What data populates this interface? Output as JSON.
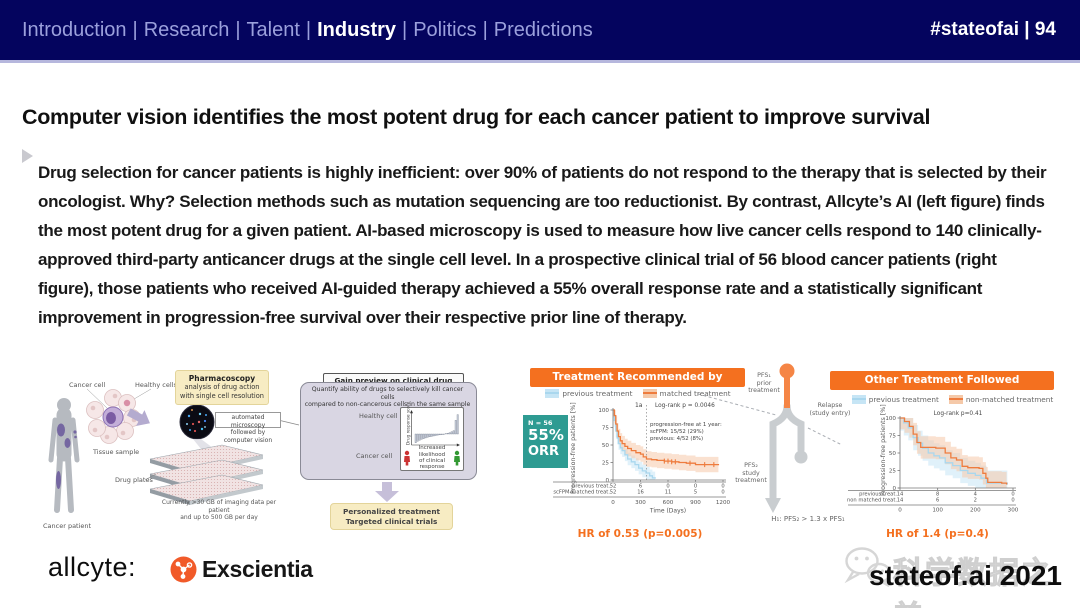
{
  "colors": {
    "navy": "#04045e",
    "nav_inactive": "#9ba0dc",
    "accent_orange": "#f4701f",
    "km_blue": "#a9d7ee",
    "km_blue_band": "#c6e5f5",
    "km_orange": "#ee7c3e",
    "km_orange_band": "#f5c9a9",
    "teal": "#2e9b92",
    "yellow_box": "#f7ecc3",
    "lavender_panel": "#d9d6e3"
  },
  "nav": {
    "items": [
      "Introduction",
      "Research",
      "Talent",
      "Industry",
      "Politics",
      "Predictions"
    ],
    "active": "Industry",
    "right": "#stateofai | 94"
  },
  "slide": {
    "title": "Computer vision identifies the most potent drug for each cancer patient to improve survival",
    "body": "Drug selection for cancer patients is highly inefficient: over 90% of patients do not respond to the therapy that is selected by their oncologist. Why? Selection methods such as mutation sequencing are too reductionist. By contrast, Allcyte’s AI (left figure) finds the most potent drug for a given patient. AI-based microscopy is used to measure how live cancer cells respond to 140 clinically-approved third-party anticancer drugs at the single cell level. In a prospective clinical trial of 56 blood cancer patients (right figure), those patients who received AI-guided therapy achieved a 55% overall response rate and a statistically significant improvement in progression-free survival over their respective prior line of therapy."
  },
  "workflow": {
    "cancer_cell": "Cancer cell",
    "healthy_cells": "Healthy cells",
    "tissue_sample": "Tissue sample",
    "cancer_patient": "Cancer patient",
    "pharmacoscopy_title": "Pharmacoscopy",
    "pharmacoscopy_sub1": "analysis of drug action",
    "pharmacoscopy_sub2": "with single cell resolution",
    "microscopy_note": "automated microscopy\nfollowed by computer vision",
    "drug_plates": "Drug plates",
    "data_note": "Currently >30 GB of imaging data per patient\nand up to 500 GB per day",
    "gain_preview": "Gain preview on clinical drug efficacy",
    "quantify": "Quantify ability of drugs to selectively kill cancer cells\ncompared to non-cancerous cells in the same sample",
    "healthy_cell": "Healthy cell",
    "cancer_cell2": "Cancer cell",
    "outcome1": "Personalized treatment",
    "outcome2": "Targeted clinical trials"
  },
  "trial": {
    "left_header": "Treatment Recommended by Platform",
    "right_header": "Other Treatment Followed",
    "n_label": "N = 56",
    "orr_pct": "55%",
    "orr_label": "ORR",
    "flow": {
      "pfs1": "PFS₁\nprior\ntreatment",
      "relapse": "Relapse\n(study entry)",
      "pfs2": "PFS₂\nstudy\ntreatment",
      "hypothesis": "H₁: PFS₂ > 1.3 x PFS₁"
    }
  },
  "chart_data": [
    {
      "id": "km_recommended",
      "type": "line",
      "title": "Treatment Recommended by Platform",
      "xlabel": "Time (Days)",
      "ylabel": "Progression-free patients [%]",
      "xlim": [
        0,
        1200
      ],
      "ylim": [
        0,
        100
      ],
      "xticks": [
        0,
        300,
        600,
        900,
        1200
      ],
      "yticks": [
        0,
        25,
        50,
        75,
        100
      ],
      "marker_x": 365,
      "marker_label": "1a",
      "logrank": "Log-rank p = 0.0046",
      "note_lines": [
        "progression-free at 1 year:",
        "scFPM:   15/52 (29%)",
        "previous:  4/52 (8%)"
      ],
      "series": [
        {
          "name": "previous treatment",
          "color": "#a9d7ee",
          "band": "#c6e5f5",
          "band_width": 9,
          "points": [
            [
              0,
              100
            ],
            [
              15,
              85
            ],
            [
              30,
              70
            ],
            [
              45,
              60
            ],
            [
              60,
              52
            ],
            [
              80,
              46
            ],
            [
              100,
              42
            ],
            [
              130,
              36
            ],
            [
              160,
              30
            ],
            [
              200,
              26
            ],
            [
              240,
              22
            ],
            [
              280,
              17
            ],
            [
              320,
              13
            ],
            [
              360,
              10
            ],
            [
              400,
              6
            ],
            [
              430,
              3
            ],
            [
              460,
              2
            ]
          ]
        },
        {
          "name": "matched treatment",
          "color": "#ee7c3e",
          "band": "#f5c9a9",
          "band_width": 11,
          "points": [
            [
              0,
              100
            ],
            [
              15,
              92
            ],
            [
              30,
              80
            ],
            [
              45,
              70
            ],
            [
              60,
              62
            ],
            [
              80,
              56
            ],
            [
              100,
              52
            ],
            [
              130,
              48
            ],
            [
              160,
              45
            ],
            [
              200,
              42
            ],
            [
              250,
              39
            ],
            [
              300,
              37
            ],
            [
              330,
              33
            ],
            [
              365,
              30
            ],
            [
              420,
              29
            ],
            [
              480,
              28
            ],
            [
              560,
              27
            ],
            [
              640,
              26
            ],
            [
              720,
              25
            ],
            [
              800,
              24
            ],
            [
              900,
              22
            ],
            [
              1000,
              22
            ],
            [
              1150,
              21
            ]
          ],
          "censors": [
            560,
            600,
            640,
            680,
            840,
            1000,
            1100
          ]
        }
      ],
      "risk_table": {
        "rows": [
          {
            "label": "previous treat.",
            "values": [
              52,
              6,
              0,
              0,
              0
            ]
          },
          {
            "label": "scFPM-matched treat.",
            "values": [
              52,
              16,
              11,
              5,
              0
            ]
          }
        ]
      },
      "caption": "HR of 0.53 (p=0.005)"
    },
    {
      "id": "km_other",
      "type": "line",
      "title": "Other Treatment Followed",
      "xlabel": "",
      "ylabel": "Progression-free patients [%]",
      "xlim": [
        0,
        300
      ],
      "ylim": [
        0,
        100
      ],
      "xticks": [
        0,
        100,
        200,
        300
      ],
      "yticks": [
        0,
        25,
        50,
        75,
        100
      ],
      "logrank": "Log-rank p=0.41",
      "series": [
        {
          "name": "previous treatment",
          "color": "#a9d7ee",
          "band": "#c6e5f5",
          "band_width": 18,
          "points": [
            [
              0,
              100
            ],
            [
              10,
              93
            ],
            [
              22,
              86
            ],
            [
              35,
              72
            ],
            [
              48,
              64
            ],
            [
              60,
              57
            ],
            [
              75,
              50
            ],
            [
              90,
              46
            ],
            [
              105,
              43
            ],
            [
              120,
              36
            ],
            [
              140,
              32
            ],
            [
              160,
              25
            ],
            [
              180,
              21
            ],
            [
              200,
              18
            ],
            [
              215,
              14
            ],
            [
              230,
              7
            ],
            [
              275,
              7
            ],
            [
              285,
              5
            ]
          ]
        },
        {
          "name": "non-matched treatment",
          "color": "#ee7c3e",
          "band": "#f5c9a9",
          "band_width": 16,
          "points": [
            [
              0,
              100
            ],
            [
              12,
              95
            ],
            [
              25,
              88
            ],
            [
              35,
              77
            ],
            [
              45,
              65
            ],
            [
              55,
              58
            ],
            [
              95,
              57
            ],
            [
              120,
              50
            ],
            [
              135,
              43
            ],
            [
              150,
              40
            ],
            [
              165,
              31
            ],
            [
              180,
              29
            ],
            [
              210,
              28
            ],
            [
              220,
              21
            ],
            [
              228,
              14
            ],
            [
              233,
              8
            ],
            [
              270,
              7
            ],
            [
              283,
              5
            ]
          ]
        }
      ],
      "risk_table": {
        "rows": [
          {
            "label": "previous treat.",
            "values": [
              14,
              8,
              4,
              0
            ]
          },
          {
            "label": "non matched treat.",
            "values": [
              14,
              6,
              2,
              0
            ]
          }
        ]
      },
      "caption": "HR of 1.4 (p=0.4)"
    },
    {
      "id": "drug_response_waterfall",
      "type": "bar",
      "ylabel": "Drug response score",
      "xlabel": "Increased likelihood\nof clinical response",
      "values": [
        -40,
        -33,
        -28,
        -24,
        -21,
        -18,
        -15,
        -13,
        -11,
        -9,
        -7,
        -5,
        -4,
        -3,
        -2,
        1,
        3,
        6,
        10,
        15,
        62,
        88
      ]
    }
  ],
  "footer": {
    "allcyte": "allcyte:",
    "exscientia": "Exscientia",
    "stateofai": "stateof.ai 2021",
    "watermark": "科学数据之美"
  }
}
